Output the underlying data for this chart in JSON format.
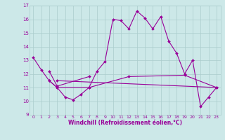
{
  "background_color": "#cce8e8",
  "line_color": "#990099",
  "grid_color": "#aacccc",
  "xlabel": "Windchill (Refroidissement éolien,°C)",
  "xlabel_fontsize": 5.5,
  "xtick_fontsize": 4.5,
  "ytick_fontsize": 5.0,
  "xlim": [
    -0.5,
    23.5
  ],
  "ylim": [
    9,
    17
  ],
  "yticks": [
    9,
    10,
    11,
    12,
    13,
    14,
    15,
    16,
    17
  ],
  "xticks": [
    0,
    1,
    2,
    3,
    4,
    5,
    6,
    7,
    8,
    9,
    10,
    11,
    12,
    13,
    14,
    15,
    16,
    17,
    18,
    19,
    20,
    21,
    22,
    23
  ],
  "line1_x": [
    0,
    1,
    2,
    3,
    4,
    5,
    6,
    7,
    8,
    9,
    10,
    11,
    12,
    13,
    14,
    15,
    16,
    17,
    18,
    19,
    20,
    21,
    22,
    23
  ],
  "line1_y": [
    13.2,
    12.3,
    11.5,
    11.0,
    10.3,
    10.1,
    10.5,
    11.0,
    12.2,
    12.9,
    16.0,
    15.9,
    15.3,
    16.6,
    16.1,
    15.3,
    16.2,
    14.4,
    13.5,
    12.0,
    13.0,
    9.6,
    10.3,
    11.0
  ],
  "line2_x": [
    2,
    3,
    7,
    12,
    19,
    23
  ],
  "line2_y": [
    11.5,
    11.0,
    11.0,
    11.8,
    11.9,
    11.0
  ],
  "line3_x": [
    2,
    3,
    7
  ],
  "line3_y": [
    12.2,
    11.1,
    11.8
  ],
  "line4_x": [
    3,
    23
  ],
  "line4_y": [
    11.5,
    11.0
  ],
  "marker_size": 2.0,
  "linewidth": 0.8
}
